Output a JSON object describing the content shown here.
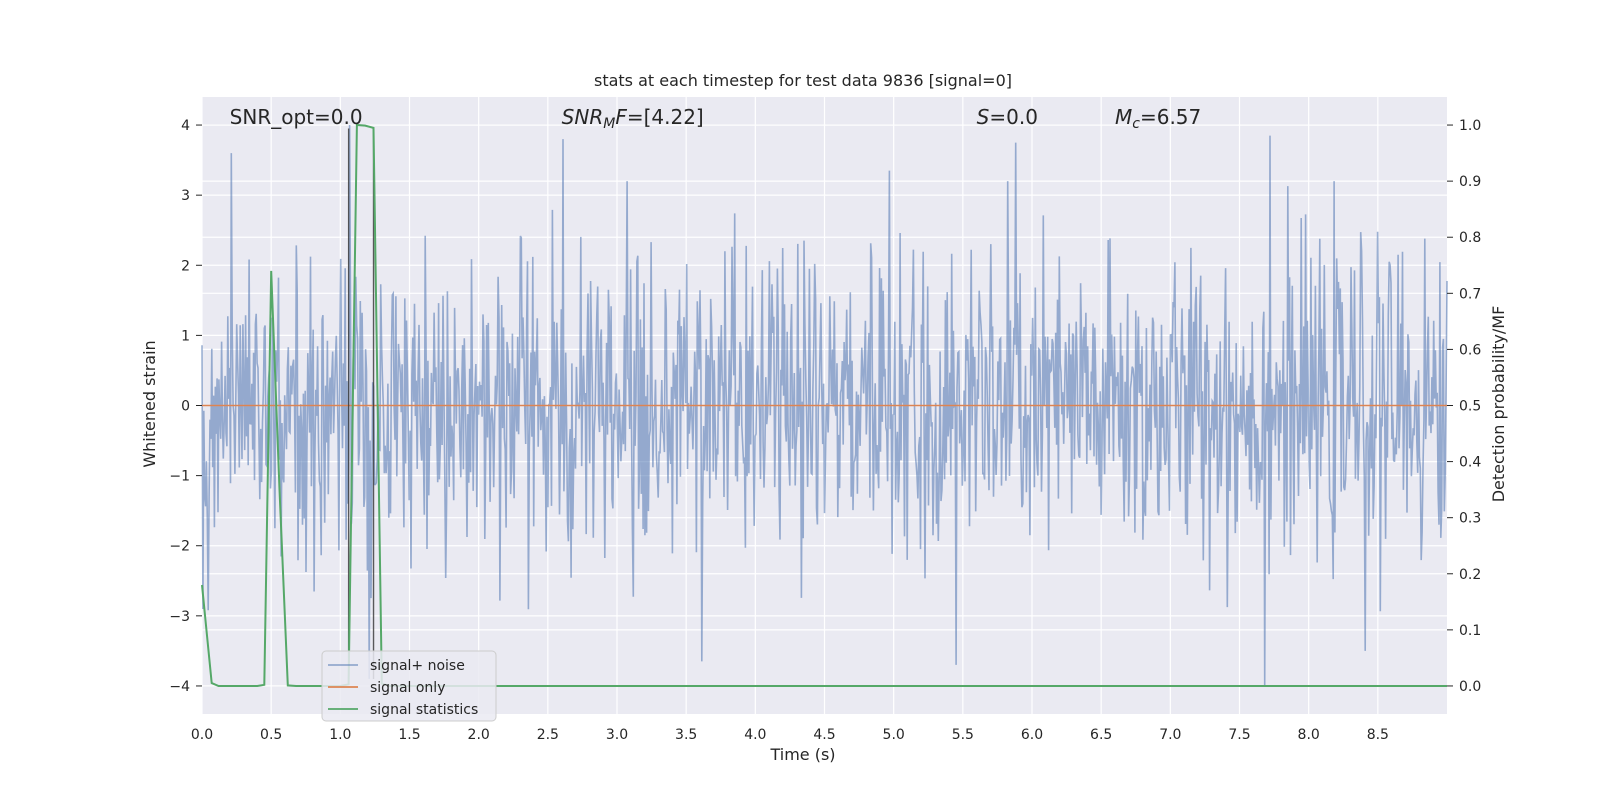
{
  "chart_data": {
    "type": "line",
    "title": "stats at each timestep for test data 9836 [signal=0]",
    "xlabel": "Time (s)",
    "ylabel": "Whitened strain",
    "y2label": "Detection probability/MF",
    "xlim": [
      0,
      9.0
    ],
    "ylim": [
      -4.4,
      4.4
    ],
    "y2lim": [
      -0.05,
      1.05
    ],
    "x_ticks": [
      0.0,
      0.5,
      1.0,
      1.5,
      2.0,
      2.5,
      3.0,
      3.5,
      4.0,
      4.5,
      5.0,
      5.5,
      6.0,
      6.5,
      7.0,
      7.5,
      8.0,
      8.5
    ],
    "x_tick_labels": [
      "0.0",
      "0.5",
      "1.0",
      "1.5",
      "2.0",
      "2.5",
      "3.0",
      "3.5",
      "4.0",
      "4.5",
      "5.0",
      "5.5",
      "6.0",
      "6.5",
      "7.0",
      "7.5",
      "8.0",
      "8.5"
    ],
    "y_ticks": [
      -4,
      -3,
      -2,
      -1,
      0,
      1,
      2,
      3,
      4
    ],
    "y_tick_labels": [
      "−4",
      "−3",
      "−2",
      "−1",
      "0",
      "1",
      "2",
      "3",
      "4"
    ],
    "y2_ticks": [
      0.0,
      0.1,
      0.2,
      0.3,
      0.4,
      0.5,
      0.6,
      0.7,
      0.8,
      0.9,
      1.0
    ],
    "y2_tick_labels": [
      "0.0",
      "0.1",
      "0.2",
      "0.3",
      "0.4",
      "0.5",
      "0.6",
      "0.7",
      "0.8",
      "0.9",
      "1.0"
    ],
    "grid": true,
    "legend_position": "lower-left",
    "annotations": [
      {
        "html": "SNR_opt=0.0",
        "x": 0.2
      },
      {
        "html": "<tspan font-style=\"italic\">SNR</tspan><tspan font-style=\"italic\" font-size=\"14\" dy=\"4\">M</tspan><tspan font-style=\"italic\" dy=\"-4\">F</tspan>=[4.22]",
        "x": 2.6
      },
      {
        "html": "<tspan font-style=\"italic\">S</tspan>=0.0",
        "x": 5.6
      },
      {
        "html": "<tspan font-style=\"italic\">M</tspan><tspan font-style=\"italic\" font-size=\"14\" dy=\"4\">c</tspan><tspan dy=\"-4\">=6.57</tspan>",
        "x": 6.6
      }
    ],
    "series": [
      {
        "name": "signal+ noise",
        "color": "#4c72b0",
        "opacity": 0.55,
        "axis": "left",
        "description_values": "whitened noise, approximately Gaussian, amplitude mostly within +/-2.8, peaks near 3.8 and -4.0",
        "peaks": [
          {
            "x": 0.21,
            "y": 3.6
          },
          {
            "x": 2.61,
            "y": 3.8
          },
          {
            "x": 4.97,
            "y": 3.35
          },
          {
            "x": 5.88,
            "y": 3.75
          },
          {
            "x": 7.72,
            "y": 3.85
          },
          {
            "x": 7.68,
            "y": -4.0
          },
          {
            "x": 8.41,
            "y": -3.5
          },
          {
            "x": 5.45,
            "y": -3.7
          },
          {
            "x": 3.61,
            "y": -3.65
          },
          {
            "x": 1.07,
            "y": 4.0
          },
          {
            "x": 1.21,
            "y": -3.9
          }
        ]
      },
      {
        "name": "signal only",
        "color": "#dd8452",
        "axis": "left",
        "x": [
          0.0,
          9.0
        ],
        "y": [
          0.0,
          0.0
        ]
      },
      {
        "name": "signal statistics",
        "color": "#55a868",
        "axis": "right",
        "x": [
          0.0,
          0.07,
          0.12,
          0.25,
          0.4,
          0.45,
          0.5,
          0.56,
          0.62,
          0.68,
          1.0,
          1.06,
          1.12,
          1.18,
          1.24,
          1.3,
          1.36,
          9.0
        ],
        "y": [
          0.18,
          0.005,
          0.0,
          0.0,
          0.0,
          0.002,
          0.74,
          0.35,
          0.001,
          0.0,
          0.0,
          0.003,
          1.0,
          0.999,
          0.995,
          0.004,
          0.0,
          0.0
        ]
      }
    ],
    "vertical_markers": [
      1.06,
      1.24
    ]
  }
}
